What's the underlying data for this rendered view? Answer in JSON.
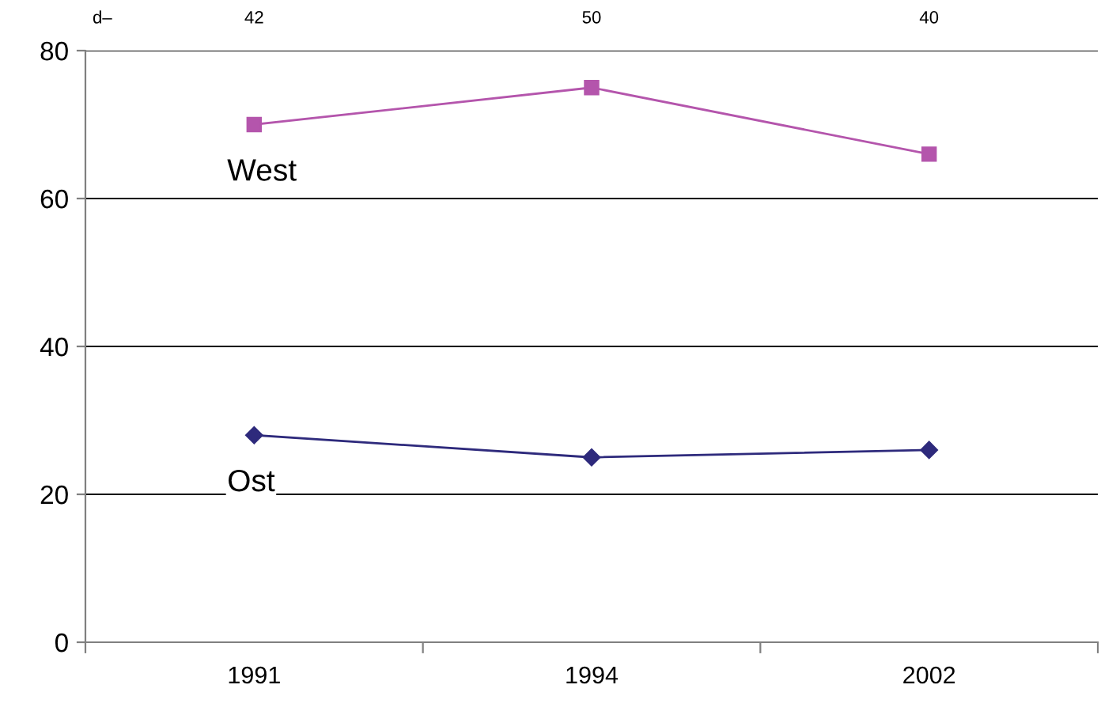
{
  "chart_data": {
    "type": "line",
    "categories": [
      "1991",
      "1994",
      "2002"
    ],
    "series": [
      {
        "name": "West",
        "color": "#b455ac",
        "marker": "square",
        "values": [
          70,
          75,
          66
        ]
      },
      {
        "name": "Ost",
        "color": "#2e2a7c",
        "marker": "diamond",
        "values": [
          28,
          25,
          26
        ]
      }
    ],
    "ylim": [
      0,
      80
    ],
    "yticks": [
      0,
      20,
      40,
      60,
      80
    ],
    "grid": "y",
    "legend": false,
    "line_style": "solid",
    "annotations": [
      "d–",
      "42",
      "50",
      "40"
    ]
  }
}
